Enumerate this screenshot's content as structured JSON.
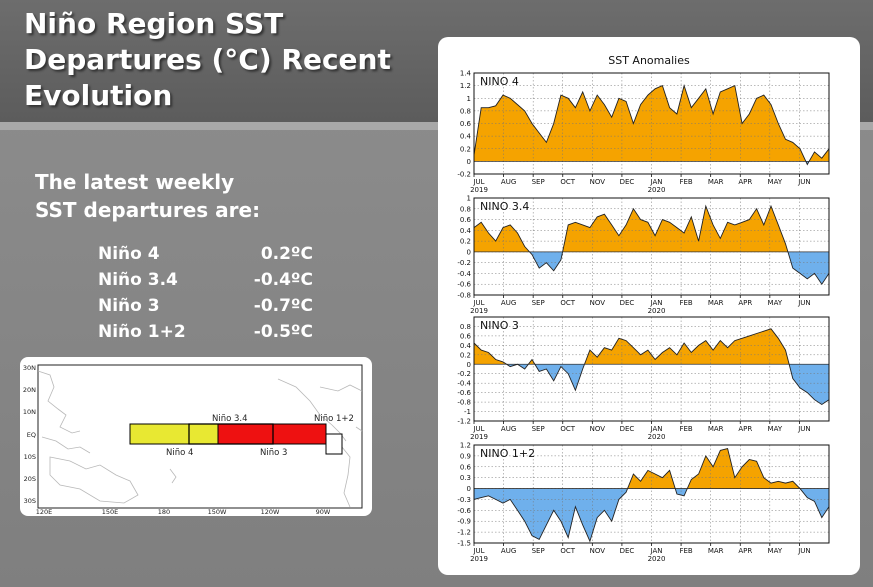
{
  "title_lines": [
    "Niño Region SST",
    "Departures (°C) Recent",
    "Evolution"
  ],
  "intro_lines": [
    "The latest weekly",
    "SST departures are:"
  ],
  "departures": [
    {
      "region": "Niño 4",
      "value": "0.2ºC"
    },
    {
      "region": "Niño 3.4",
      "value": "-0.4ºC"
    },
    {
      "region": "Niño 3",
      "value": "-0.7ºC"
    },
    {
      "region": "Niño 1+2",
      "value": "-0.5ºC"
    }
  ],
  "map": {
    "lat_labels": [
      "30N",
      "20N",
      "10N",
      "EQ",
      "10S",
      "20S",
      "30S"
    ],
    "lon_labels": [
      "120E",
      "150E",
      "180",
      "150W",
      "120W",
      "90W"
    ],
    "region_labels": {
      "nino34": "Niño 3.4",
      "nino4": "Niño 4",
      "nino3": "Niño 3",
      "nino12": "Niño 1+2"
    },
    "colors": {
      "nino4": "#e8e832",
      "nino3": "#ee1111",
      "nino12": "#ffffff"
    }
  },
  "chart_data": {
    "type": "area",
    "title": "SST Anomalies",
    "colors": {
      "positive": "#f5a300",
      "negative": "#6fb0ec"
    },
    "x_labels": [
      "JUL",
      "AUG",
      "SEP",
      "OCT",
      "NOV",
      "DEC",
      "JAN",
      "FEB",
      "MAR",
      "APR",
      "MAY",
      "JUN"
    ],
    "year_labels": [
      {
        "text": "2019",
        "month_index": 0
      },
      {
        "text": "2020",
        "month_index": 6
      }
    ],
    "x_range": [
      0,
      49
    ],
    "panels": [
      {
        "name": "NINO 4",
        "ylim": [
          -0.2,
          1.4
        ],
        "yticks": [
          -0.2,
          0,
          0.2,
          0.4,
          0.6,
          0.8,
          1,
          1.2,
          1.4
        ],
        "tick_labels": [
          "-0.2",
          "0",
          "0.2",
          "0.4",
          "0.6",
          "0.8",
          "1",
          "1.2",
          "1.4"
        ],
        "values": [
          0.1,
          0.85,
          0.85,
          0.88,
          1.05,
          1.0,
          0.9,
          0.8,
          0.6,
          0.45,
          0.3,
          0.6,
          1.05,
          1.0,
          0.85,
          1.1,
          0.8,
          1.05,
          0.9,
          0.7,
          1.0,
          0.95,
          0.6,
          0.9,
          1.05,
          1.15,
          1.2,
          0.85,
          0.75,
          1.2,
          0.85,
          1.0,
          1.15,
          0.75,
          1.1,
          1.15,
          1.2,
          0.6,
          0.75,
          1.0,
          1.05,
          0.9,
          0.6,
          0.35,
          0.3,
          0.2,
          -0.05,
          0.15,
          0.05,
          0.2
        ]
      },
      {
        "name": "NINO 3.4",
        "ylim": [
          -0.8,
          1.0
        ],
        "yticks": [
          -0.8,
          -0.6,
          -0.4,
          -0.2,
          0,
          0.2,
          0.4,
          0.6,
          0.8,
          1
        ],
        "tick_labels": [
          "-0.8",
          "-0.6",
          "-0.4",
          "-0.2",
          "0",
          "0.2",
          "0.4",
          "0.6",
          "0.8",
          "1"
        ],
        "values": [
          0.45,
          0.55,
          0.35,
          0.2,
          0.45,
          0.5,
          0.35,
          0.1,
          -0.05,
          -0.3,
          -0.2,
          -0.35,
          -0.15,
          0.5,
          0.55,
          0.5,
          0.45,
          0.65,
          0.7,
          0.5,
          0.3,
          0.5,
          0.8,
          0.6,
          0.55,
          0.3,
          0.6,
          0.55,
          0.45,
          0.35,
          0.65,
          0.2,
          0.85,
          0.5,
          0.25,
          0.55,
          0.5,
          0.55,
          0.6,
          0.8,
          0.5,
          0.85,
          0.5,
          0.15,
          -0.3,
          -0.4,
          -0.5,
          -0.4,
          -0.6,
          -0.4
        ]
      },
      {
        "name": "NINO 3",
        "ylim": [
          -1.2,
          1.0
        ],
        "yticks": [
          -1.2,
          -1.0,
          -0.8,
          -0.6,
          -0.4,
          -0.2,
          0,
          0.2,
          0.4,
          0.6,
          0.8
        ],
        "tick_labels": [
          "-1.2",
          "-1",
          "-0.8",
          "-0.6",
          "-0.4",
          "-0.2",
          "0",
          "0.2",
          "0.4",
          "0.6",
          "0.8"
        ],
        "values": [
          0.45,
          0.3,
          0.25,
          0.1,
          0.05,
          -0.05,
          0.0,
          -0.1,
          0.1,
          -0.15,
          -0.1,
          -0.35,
          -0.05,
          -0.2,
          -0.55,
          -0.1,
          0.3,
          0.15,
          0.35,
          0.3,
          0.55,
          0.5,
          0.35,
          0.2,
          0.3,
          0.1,
          0.25,
          0.35,
          0.2,
          0.45,
          0.25,
          0.4,
          0.5,
          0.3,
          0.5,
          0.35,
          0.5,
          0.55,
          0.6,
          0.65,
          0.7,
          0.75,
          0.55,
          0.3,
          -0.3,
          -0.5,
          -0.6,
          -0.75,
          -0.85,
          -0.75
        ]
      },
      {
        "name": "NINO 1+2",
        "ylim": [
          -1.5,
          1.2
        ],
        "yticks": [
          -1.5,
          -1.2,
          -0.9,
          -0.6,
          -0.3,
          0,
          0.3,
          0.6,
          0.9,
          1.2
        ],
        "tick_labels": [
          "-1.5",
          "-1.2",
          "-0.9",
          "-0.6",
          "-0.3",
          "0",
          "0.3",
          "0.6",
          "0.9",
          "1.2"
        ],
        "values": [
          -0.3,
          -0.25,
          -0.2,
          -0.3,
          -0.4,
          -0.3,
          -0.6,
          -0.9,
          -1.3,
          -1.4,
          -1.0,
          -0.6,
          -0.9,
          -1.35,
          -0.5,
          -1.0,
          -1.45,
          -0.8,
          -0.6,
          -0.9,
          -0.3,
          -0.1,
          0.4,
          0.2,
          0.5,
          0.4,
          0.3,
          0.5,
          -0.15,
          -0.2,
          0.25,
          0.4,
          0.9,
          0.6,
          1.05,
          1.1,
          0.3,
          0.6,
          0.8,
          0.75,
          0.3,
          0.15,
          0.2,
          0.15,
          0.2,
          0.0,
          -0.25,
          -0.35,
          -0.8,
          -0.5
        ]
      }
    ]
  }
}
